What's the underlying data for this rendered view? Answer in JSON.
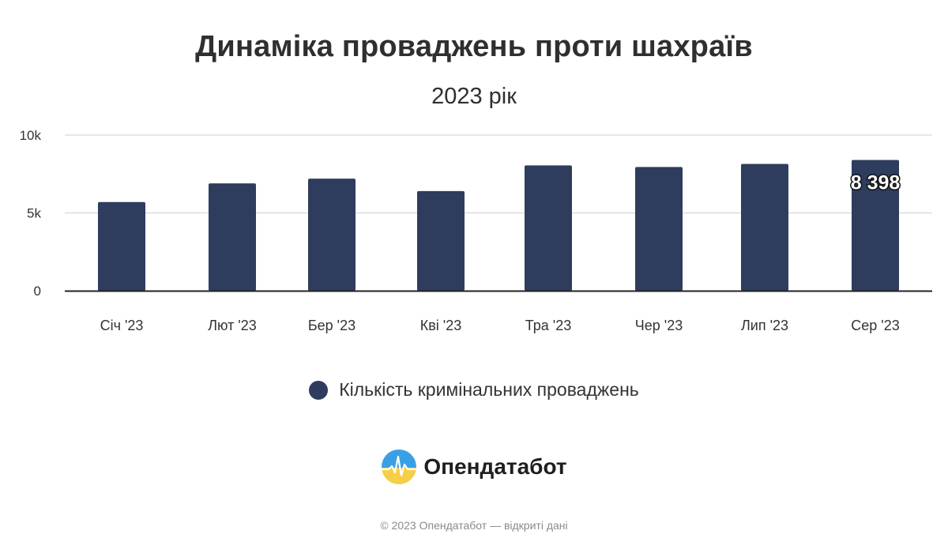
{
  "chart_data": {
    "type": "bar",
    "title": "Динаміка проваджень проти шахраїв",
    "subtitle": "2023 рік",
    "categories": [
      "Січ '23",
      "Лют '23",
      "Бер '23",
      "Кві '23",
      "Тра '23",
      "Чер '23",
      "Лип '23",
      "Сер '23"
    ],
    "series": [
      {
        "name": "Кількість кримінальних проваджень",
        "values": [
          5700,
          6900,
          7200,
          6400,
          8050,
          7950,
          8150,
          8398
        ],
        "color": "#2e3c5d"
      }
    ],
    "data_labels": [
      {
        "index": 7,
        "text": "8 398"
      }
    ],
    "y_ticks": [
      {
        "value": 0,
        "label": "0"
      },
      {
        "value": 5000,
        "label": "5k"
      },
      {
        "value": 10000,
        "label": "10k"
      }
    ],
    "ylim": [
      0,
      10000
    ],
    "grid": true,
    "legend_position": "bottom-center"
  },
  "branding": {
    "name": "Опендатабот",
    "copyright": "© 2023 Опендатабот — відкриті дані"
  },
  "colors": {
    "bar": "#2e3c5d",
    "grid": "#dddddd",
    "axis": "#222222"
  }
}
